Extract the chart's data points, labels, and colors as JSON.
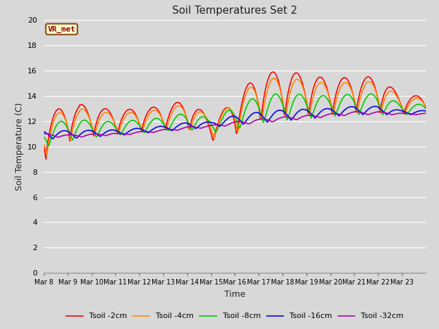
{
  "title": "Soil Temperatures Set 2",
  "xlabel": "Time",
  "ylabel": "Soil Temperature (C)",
  "fig_bg_color": "#d8d8d8",
  "plot_bg_color": "#d8d8d8",
  "ylim": [
    0,
    20
  ],
  "yticks": [
    0,
    2,
    4,
    6,
    8,
    10,
    12,
    14,
    16,
    18,
    20
  ],
  "x_labels": [
    "Mar 8",
    "Mar 9",
    "Mar 10",
    "Mar 11",
    "Mar 12",
    "Mar 13",
    "Mar 14",
    "Mar 15",
    "Mar 16",
    "Mar 17",
    "Mar 18",
    "Mar 19",
    "Mar 20",
    "Mar 21",
    "Mar 22",
    "Mar 23"
  ],
  "n_days": 16,
  "series_colors": {
    "Tsoil -2cm": "#ff0000",
    "Tsoil -4cm": "#ff8800",
    "Tsoil -8cm": "#00cc00",
    "Tsoil -16cm": "#0000ff",
    "Tsoil -32cm": "#aa00aa"
  },
  "annotation_text": "VR_met",
  "lw": 1.2
}
